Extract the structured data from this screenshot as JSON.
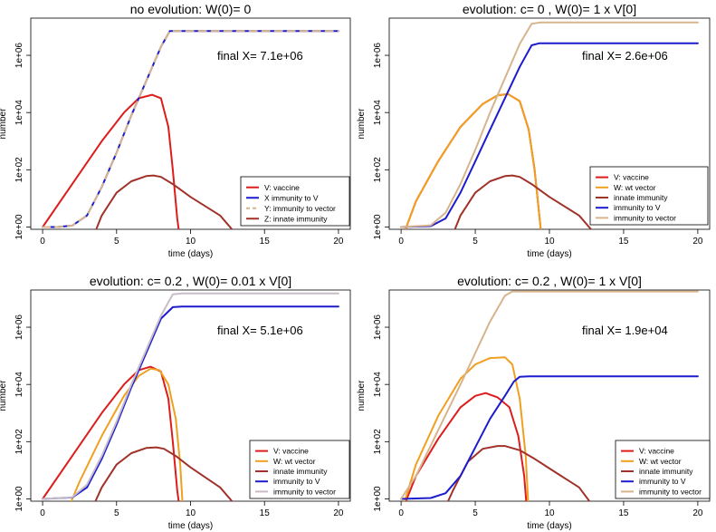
{
  "chart_data": [
    {
      "type": "line",
      "title": "no evolution: W(0)= 0",
      "annotation": "final X= 7.1e+06",
      "xlabel": "time (days)",
      "ylabel": "number",
      "xlim": [
        0,
        20
      ],
      "ylim_log10": [
        0,
        7.3
      ],
      "x_ticks": [
        0,
        5,
        10,
        15,
        20
      ],
      "y_ticks": [
        "1e+00",
        "1e+02",
        "1e+04",
        "1e+06"
      ],
      "series": [
        {
          "name": "V: vaccine",
          "color": "#dd1c1c",
          "dash": "",
          "points": [
            [
              0,
              0
            ],
            [
              2,
              1.5
            ],
            [
              4,
              3
            ],
            [
              5.5,
              4
            ],
            [
              6.5,
              4.5
            ],
            [
              7.4,
              4.62
            ],
            [
              8,
              4.5
            ],
            [
              8.5,
              3.5
            ],
            [
              8.8,
              2
            ],
            [
              9.1,
              0.3
            ],
            [
              9.3,
              -0.5
            ]
          ]
        },
        {
          "name": "X immunity to V",
          "color": "#1c1ccc",
          "dash": "",
          "points": [
            [
              0,
              0
            ],
            [
              1,
              0
            ],
            [
              2,
              0.05
            ],
            [
              3,
              0.4
            ],
            [
              4,
              1.4
            ],
            [
              5,
              2.6
            ],
            [
              6,
              3.9
            ],
            [
              7,
              5.1
            ],
            [
              8,
              6.3
            ],
            [
              8.6,
              6.85
            ],
            [
              9.3,
              6.85
            ],
            [
              20,
              6.85
            ]
          ]
        },
        {
          "name": "Y: immunity to vector",
          "color": "#d8b48c",
          "dash": "8,6",
          "points": [
            [
              0,
              0
            ],
            [
              1,
              0
            ],
            [
              2,
              0.05
            ],
            [
              3,
              0.4
            ],
            [
              4,
              1.4
            ],
            [
              5,
              2.6
            ],
            [
              6,
              3.9
            ],
            [
              7,
              5.1
            ],
            [
              8,
              6.3
            ],
            [
              8.6,
              6.85
            ],
            [
              9.3,
              6.85
            ],
            [
              20,
              6.85
            ]
          ]
        },
        {
          "name": "Z: innate immunity",
          "color": "#a0322a",
          "dash": "",
          "points": [
            [
              3.3,
              -0.5
            ],
            [
              4,
              0.4
            ],
            [
              5,
              1.2
            ],
            [
              6,
              1.6
            ],
            [
              7,
              1.78
            ],
            [
              7.5,
              1.8
            ],
            [
              8,
              1.75
            ],
            [
              8.8,
              1.5
            ],
            [
              10,
              1.05
            ],
            [
              12,
              0.4
            ],
            [
              13.5,
              -0.5
            ]
          ]
        }
      ],
      "legend": [
        "V: vaccine",
        "X immunity to V",
        "Y: immunity to vector",
        "Z: innate immunity"
      ]
    },
    {
      "type": "line",
      "title": "evolution: c= 0 , W(0)= 1 x V[0]",
      "annotation": "final X= 2.6e+06",
      "xlabel": "time (days)",
      "ylabel": "number",
      "xlim": [
        0,
        20
      ],
      "ylim_log10": [
        0,
        7.3
      ],
      "x_ticks": [
        0,
        5,
        10,
        15,
        20
      ],
      "y_ticks": [
        "1e+00",
        "1e+02",
        "1e+04",
        "1e+06"
      ],
      "series": [
        {
          "name": "V: vaccine",
          "color": "#dd1c1c",
          "points": [
            [
              0,
              -0.5
            ],
            [
              1,
              0.9
            ],
            [
              2.5,
              2.3
            ],
            [
              4,
              3.5
            ],
            [
              5.5,
              4.3
            ],
            [
              6.5,
              4.6
            ],
            [
              7.2,
              4.65
            ],
            [
              8,
              4.4
            ],
            [
              8.6,
              3.4
            ],
            [
              9,
              2
            ],
            [
              9.3,
              0.5
            ],
            [
              9.5,
              -0.5
            ]
          ]
        },
        {
          "name": "W: wt vector",
          "color": "#f0a020",
          "points": [
            [
              0,
              -0.5
            ],
            [
              1,
              0.9
            ],
            [
              2.5,
              2.3
            ],
            [
              4,
              3.5
            ],
            [
              5.5,
              4.3
            ],
            [
              6.5,
              4.6
            ],
            [
              7.2,
              4.65
            ],
            [
              8,
              4.4
            ],
            [
              8.6,
              3.4
            ],
            [
              9,
              2
            ],
            [
              9.3,
              0.5
            ],
            [
              9.5,
              -0.5
            ]
          ]
        },
        {
          "name": "innate immunity",
          "color": "#a0322a",
          "points": [
            [
              3.3,
              -0.5
            ],
            [
              4,
              0.4
            ],
            [
              5,
              1.2
            ],
            [
              6,
              1.6
            ],
            [
              7,
              1.78
            ],
            [
              7.5,
              1.8
            ],
            [
              8,
              1.75
            ],
            [
              8.8,
              1.5
            ],
            [
              10,
              1.05
            ],
            [
              12,
              0.4
            ],
            [
              13.5,
              -0.5
            ]
          ]
        },
        {
          "name": "immunity to V",
          "color": "#1c1ccc",
          "points": [
            [
              0,
              0
            ],
            [
              2,
              0.03
            ],
            [
              3,
              0.3
            ],
            [
              4,
              1.2
            ],
            [
              5,
              2.3
            ],
            [
              6,
              3.4
            ],
            [
              7,
              4.5
            ],
            [
              8,
              5.6
            ],
            [
              8.8,
              6.35
            ],
            [
              9.3,
              6.42
            ],
            [
              20,
              6.42
            ]
          ]
        },
        {
          "name": "immunity to vector",
          "color": "#d8b48c",
          "points": [
            [
              0,
              0
            ],
            [
              2,
              0.06
            ],
            [
              3,
              0.5
            ],
            [
              4,
              1.5
            ],
            [
              5,
              2.7
            ],
            [
              6,
              4.0
            ],
            [
              7,
              5.2
            ],
            [
              8,
              6.4
            ],
            [
              8.8,
              7.1
            ],
            [
              9.4,
              7.15
            ],
            [
              20,
              7.15
            ]
          ]
        }
      ],
      "legend": [
        "V: vaccine",
        "W: wt vector",
        "innate immunity",
        "immunity to V",
        "immunity to vector"
      ]
    },
    {
      "type": "line",
      "title": "evolution: c= 0.2 , W(0)= 0.01 x V[0]",
      "annotation": "final X= 5.1e+06",
      "xlabel": "time (days)",
      "ylabel": "number",
      "xlim": [
        0,
        20
      ],
      "ylim_log10": [
        0,
        7.3
      ],
      "x_ticks": [
        0,
        5,
        10,
        15,
        20
      ],
      "y_ticks": [
        "1e+00",
        "1e+02",
        "1e+04",
        "1e+06"
      ],
      "series": [
        {
          "name": "V: vaccine",
          "color": "#dd1c1c",
          "points": [
            [
              0,
              0
            ],
            [
              2,
              1.5
            ],
            [
              4,
              3
            ],
            [
              5.5,
              4
            ],
            [
              6.5,
              4.5
            ],
            [
              7.3,
              4.62
            ],
            [
              8,
              4.45
            ],
            [
              8.5,
              3.5
            ],
            [
              8.8,
              2
            ],
            [
              9.1,
              0.3
            ],
            [
              9.3,
              -0.5
            ]
          ]
        },
        {
          "name": "W: wt vector",
          "color": "#f0a020",
          "points": [
            [
              1.6,
              -0.5
            ],
            [
              2.5,
              0.6
            ],
            [
              4,
              2.2
            ],
            [
              5.5,
              3.6
            ],
            [
              6.5,
              4.3
            ],
            [
              7.3,
              4.55
            ],
            [
              7.9,
              4.5
            ],
            [
              8.5,
              4
            ],
            [
              9,
              2.8
            ],
            [
              9.3,
              1.2
            ],
            [
              9.5,
              -0.5
            ]
          ]
        },
        {
          "name": "innate immunity",
          "color": "#a0322a",
          "points": [
            [
              3.2,
              -0.5
            ],
            [
              4,
              0.4
            ],
            [
              5,
              1.2
            ],
            [
              6,
              1.6
            ],
            [
              7,
              1.78
            ],
            [
              7.7,
              1.8
            ],
            [
              8.2,
              1.75
            ],
            [
              9,
              1.5
            ],
            [
              10,
              1.1
            ],
            [
              12,
              0.4
            ],
            [
              13.5,
              -0.5
            ]
          ]
        },
        {
          "name": "immunity to V",
          "color": "#1c1ccc",
          "points": [
            [
              0,
              0
            ],
            [
              2,
              0.05
            ],
            [
              3,
              0.4
            ],
            [
              4,
              1.4
            ],
            [
              5,
              2.6
            ],
            [
              6,
              3.9
            ],
            [
              7,
              5.1
            ],
            [
              8,
              6.3
            ],
            [
              8.8,
              6.7
            ],
            [
              9.4,
              6.72
            ],
            [
              20,
              6.72
            ]
          ]
        },
        {
          "name": "immunity to vector",
          "color": "#c8bcc8",
          "points": [
            [
              0,
              0
            ],
            [
              2,
              0.06
            ],
            [
              3,
              0.5
            ],
            [
              4,
              1.5
            ],
            [
              5,
              2.7
            ],
            [
              6,
              4.0
            ],
            [
              7,
              5.2
            ],
            [
              8,
              6.4
            ],
            [
              8.8,
              7.15
            ],
            [
              9.4,
              7.18
            ],
            [
              20,
              7.18
            ]
          ]
        }
      ],
      "legend": [
        "V: vaccine",
        "W: wt vector",
        "innate immunity",
        "immunity to V",
        "immunity to vector"
      ]
    },
    {
      "type": "line",
      "title": "evolution: c= 0.2 , W(0)= 1 x V[0]",
      "annotation": "final X= 1.9e+04",
      "xlabel": "time (days)",
      "ylabel": "number",
      "xlim": [
        0,
        20
      ],
      "ylim_log10": [
        0,
        7.3
      ],
      "x_ticks": [
        0,
        5,
        10,
        15,
        20
      ],
      "y_ticks": [
        "1e+00",
        "1e+02",
        "1e+04",
        "1e+06"
      ],
      "series": [
        {
          "name": "V: vaccine",
          "color": "#dd1c1c",
          "points": [
            [
              0,
              -0.5
            ],
            [
              1,
              0.8
            ],
            [
              2.5,
              2.1
            ],
            [
              4,
              3.2
            ],
            [
              5,
              3.6
            ],
            [
              5.7,
              3.7
            ],
            [
              6.5,
              3.55
            ],
            [
              7.3,
              3.2
            ],
            [
              7.9,
              2.2
            ],
            [
              8.3,
              0.8
            ],
            [
              8.5,
              -0.5
            ]
          ]
        },
        {
          "name": "W: wt vector",
          "color": "#f0a020",
          "points": [
            [
              0,
              -0.5
            ],
            [
              1,
              1.2
            ],
            [
              2.5,
              2.9
            ],
            [
              4,
              4.2
            ],
            [
              5,
              4.7
            ],
            [
              6,
              4.92
            ],
            [
              7,
              4.95
            ],
            [
              7.5,
              4.7
            ],
            [
              8,
              3.5
            ],
            [
              8.4,
              1.5
            ],
            [
              8.6,
              -0.5
            ]
          ]
        },
        {
          "name": "innate immunity",
          "color": "#a0322a",
          "points": [
            [
              2.8,
              -0.5
            ],
            [
              3.5,
              0.3
            ],
            [
              4.5,
              1.3
            ],
            [
              5.5,
              1.75
            ],
            [
              6.5,
              1.85
            ],
            [
              7,
              1.85
            ],
            [
              8,
              1.7
            ],
            [
              9,
              1.4
            ],
            [
              10.5,
              0.9
            ],
            [
              12,
              0.4
            ],
            [
              13.3,
              -0.5
            ]
          ]
        },
        {
          "name": "immunity to V",
          "color": "#1c1ccc",
          "points": [
            [
              0,
              0
            ],
            [
              2,
              0.03
            ],
            [
              3,
              0.2
            ],
            [
              4,
              0.8
            ],
            [
              5,
              1.8
            ],
            [
              6,
              2.8
            ],
            [
              7,
              3.6
            ],
            [
              7.6,
              4.1
            ],
            [
              8,
              4.27
            ],
            [
              8.6,
              4.28
            ],
            [
              20,
              4.28
            ]
          ]
        },
        {
          "name": "immunity to vector",
          "color": "#d8b48c",
          "points": [
            [
              0,
              0
            ],
            [
              1,
              0.8
            ],
            [
              2.5,
              2.4
            ],
            [
              4,
              4.0
            ],
            [
              5,
              5.1
            ],
            [
              6,
              6.2
            ],
            [
              7,
              7.1
            ],
            [
              7.5,
              7.25
            ],
            [
              20,
              7.25
            ]
          ]
        }
      ],
      "legend": [
        "V: vaccine",
        "W: wt vector",
        "innate immunity",
        "immunity to V",
        "immunity to vector"
      ]
    }
  ]
}
